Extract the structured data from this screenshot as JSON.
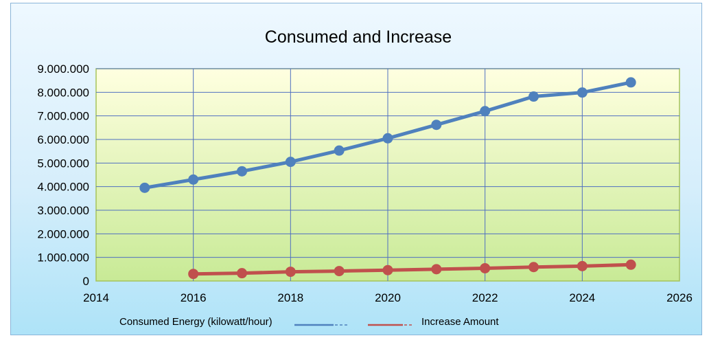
{
  "chart_data": {
    "type": "line",
    "title": "Consumed and Increase",
    "xlabel": "",
    "ylabel": "",
    "xlim": [
      2014,
      2026
    ],
    "ylim": [
      0,
      9000000
    ],
    "x_ticks": [
      "2014",
      "2016",
      "2018",
      "2020",
      "2022",
      "2024",
      "2026"
    ],
    "y_ticks": [
      "0",
      "1.000.000",
      "2.000.000",
      "3.000.000",
      "4.000.000",
      "5.000.000",
      "6.000.000",
      "7.000.000",
      "8.000.000",
      "9.000.000"
    ],
    "grid": true,
    "legend_position": "bottom",
    "series": [
      {
        "name": "Consumed Energy (kilowatt/hour)",
        "color": "#4f81bd",
        "x": [
          2015,
          2016,
          2017,
          2018,
          2019,
          2020,
          2021,
          2022,
          2023,
          2024,
          2025
        ],
        "y": [
          3950000,
          4300000,
          4650000,
          5050000,
          5530000,
          6050000,
          6620000,
          7200000,
          7820000,
          7990000,
          8420000
        ]
      },
      {
        "name": "Increase Amount",
        "color": "#c0504d",
        "x": [
          2016,
          2017,
          2018,
          2019,
          2020,
          2021,
          2022,
          2023,
          2024,
          2025
        ],
        "y": [
          300000,
          330000,
          390000,
          420000,
          460000,
          500000,
          540000,
          590000,
          630000,
          690000
        ]
      }
    ]
  },
  "colors": {
    "plot_area_top": "#ffffe0",
    "plot_area_bottom": "#c8ea96",
    "plot_border": "#a6c35a",
    "grid": "#4f6fc0"
  }
}
